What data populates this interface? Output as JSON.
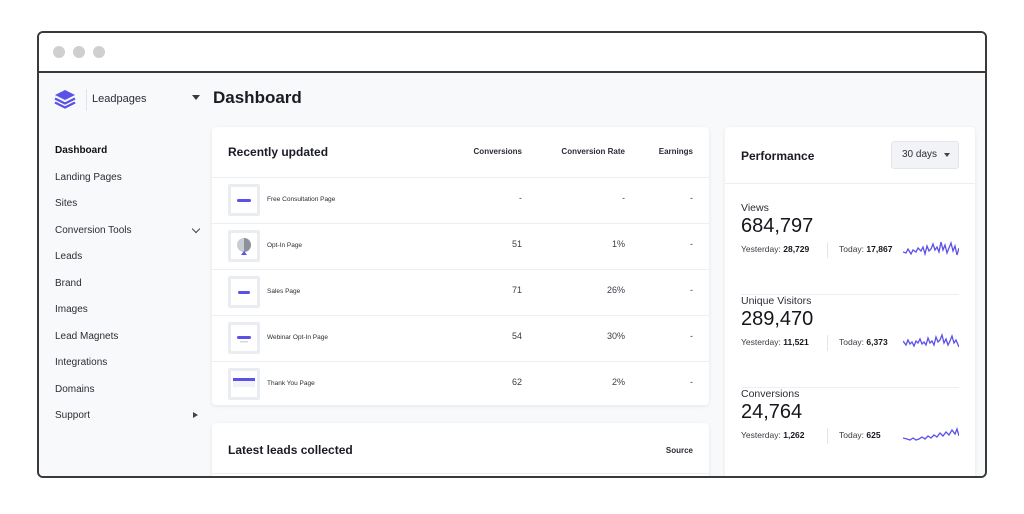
{
  "window": {
    "dots": [
      "#cfcfcf",
      "#cfcfcf",
      "#cfcfcf"
    ]
  },
  "brand": {
    "name": "Leadpages",
    "logo_icon": "layers-icon",
    "accent": "#5b50e8"
  },
  "sidebar": {
    "items": [
      {
        "label": "Dashboard",
        "active": true
      },
      {
        "label": "Landing Pages"
      },
      {
        "label": "Sites"
      },
      {
        "label": "Conversion Tools",
        "icon": "chevron-down-icon"
      },
      {
        "label": "Leads"
      },
      {
        "label": "Brand"
      },
      {
        "label": "Images"
      },
      {
        "label": "Lead Magnets"
      },
      {
        "label": "Integrations"
      },
      {
        "label": "Domains"
      },
      {
        "label": "Support",
        "icon": "caret-right-icon"
      }
    ]
  },
  "page_title": "Dashboard",
  "recent": {
    "title": "Recently updated",
    "columns": [
      "Conversions",
      "Conversion Rate",
      "Earnings"
    ],
    "rows": [
      {
        "name": "Free Consultation Page",
        "conversions": "-",
        "rate": "-",
        "earnings": "-"
      },
      {
        "name": "Opt-In Page",
        "conversions": "51",
        "rate": "1%",
        "earnings": "-"
      },
      {
        "name": "Sales Page",
        "conversions": "71",
        "rate": "26%",
        "earnings": "-"
      },
      {
        "name": "Webinar Opt-In Page",
        "conversions": "54",
        "rate": "30%",
        "earnings": "-"
      },
      {
        "name": "Thank You Page",
        "conversions": "62",
        "rate": "2%",
        "earnings": "-"
      }
    ]
  },
  "leads": {
    "title": "Latest leads collected",
    "column": "Source"
  },
  "performance": {
    "title": "Performance",
    "range": "30 days",
    "metrics": [
      {
        "label": "Views",
        "value": "684,797",
        "yesterday_label": "Yesterday:",
        "yesterday": "28,729",
        "today_label": "Today:",
        "today": "17,867"
      },
      {
        "label": "Unique Visitors",
        "value": "289,470",
        "yesterday_label": "Yesterday:",
        "yesterday": "11,521",
        "today_label": "Today:",
        "today": "6,373"
      },
      {
        "label": "Conversions",
        "value": "24,764",
        "yesterday_label": "Yesterday:",
        "yesterday": "1,262",
        "today_label": "Today:",
        "today": "625"
      }
    ],
    "spark_color": "#5b50e8"
  }
}
